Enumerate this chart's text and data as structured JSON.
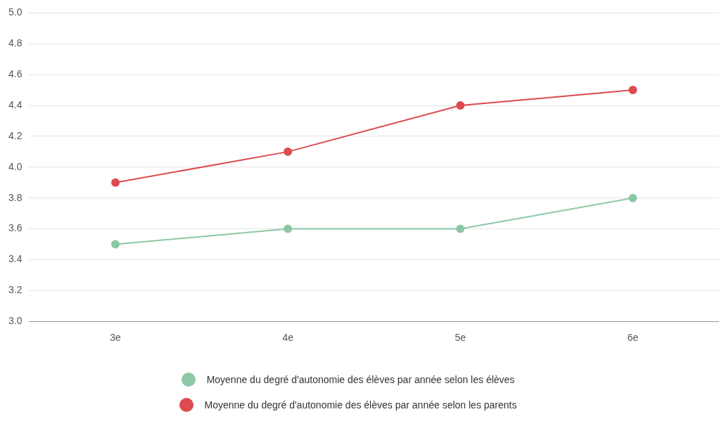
{
  "chart_data": {
    "type": "line",
    "categories": [
      "3e",
      "4e",
      "5e",
      "6e"
    ],
    "series": [
      {
        "name": "Moyenne du degré d'autonomie des élèves par année selon les élèves",
        "color": "#8cc8a6",
        "values": [
          3.5,
          3.6,
          3.6,
          3.8
        ]
      },
      {
        "name": "Moyenne du degré d'autonomie des élèves par année selon les parents",
        "color": "#dd4a4f",
        "values": [
          3.9,
          4.1,
          4.4,
          4.5
        ]
      }
    ],
    "ylim": [
      3,
      5
    ],
    "yticks": [
      {
        "value": 3,
        "label": "3.0"
      },
      {
        "value": 3.2,
        "label": "3.2"
      },
      {
        "value": 3.4,
        "label": "3.4"
      },
      {
        "value": 3.6,
        "label": "3.6"
      },
      {
        "value": 3.8,
        "label": "3.8"
      },
      {
        "value": 4,
        "label": "4.0"
      },
      {
        "value": 4.2,
        "label": "4.2"
      },
      {
        "value": 4.4,
        "label": "4.4"
      },
      {
        "value": 4.6,
        "label": "4.6"
      },
      {
        "value": 4.8,
        "label": "4.8"
      },
      {
        "value": 5,
        "label": "5.0"
      }
    ],
    "grid": "y",
    "legend": "bottom",
    "marker": "circle",
    "line_style": "solid"
  }
}
